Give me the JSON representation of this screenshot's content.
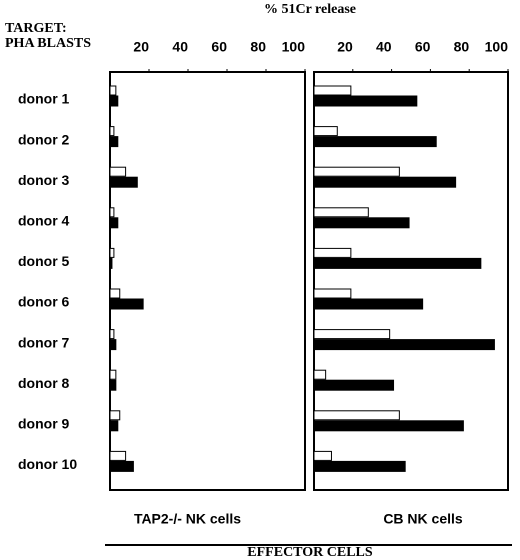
{
  "title": "% 51Cr release",
  "target_label": [
    "TARGET:",
    "PHA BLASTS"
  ],
  "footer": "EFFECTOR CELLS",
  "chart_data": [
    {
      "type": "bar",
      "orientation": "horizontal",
      "xlabel": "TAP2-/- NK cells",
      "categories": [
        "donor 1",
        "donor 2",
        "donor 3",
        "donor 4",
        "donor 5",
        "donor 6",
        "donor 7",
        "donor 8",
        "donor 9",
        "donor 10"
      ],
      "series": [
        {
          "color": "#ffffff",
          "values": [
            3,
            2,
            8,
            2,
            2,
            5,
            2,
            3,
            5,
            8
          ]
        },
        {
          "color": "#000000",
          "values": [
            4,
            4,
            14,
            4,
            1,
            17,
            3,
            3,
            4,
            12
          ]
        }
      ],
      "xlim": [
        0,
        100
      ],
      "xticks": [
        20,
        40,
        60,
        80,
        100
      ]
    },
    {
      "type": "bar",
      "orientation": "horizontal",
      "xlabel": "CB NK cells",
      "series": [
        {
          "color": "#ffffff",
          "values": [
            19,
            12,
            44,
            28,
            19,
            19,
            39,
            6,
            44,
            9
          ]
        },
        {
          "color": "#000000",
          "values": [
            53,
            63,
            73,
            49,
            86,
            56,
            93,
            41,
            77,
            47
          ]
        }
      ],
      "xlim": [
        0,
        100
      ],
      "xticks": [
        20,
        40,
        60,
        80,
        100
      ]
    }
  ]
}
